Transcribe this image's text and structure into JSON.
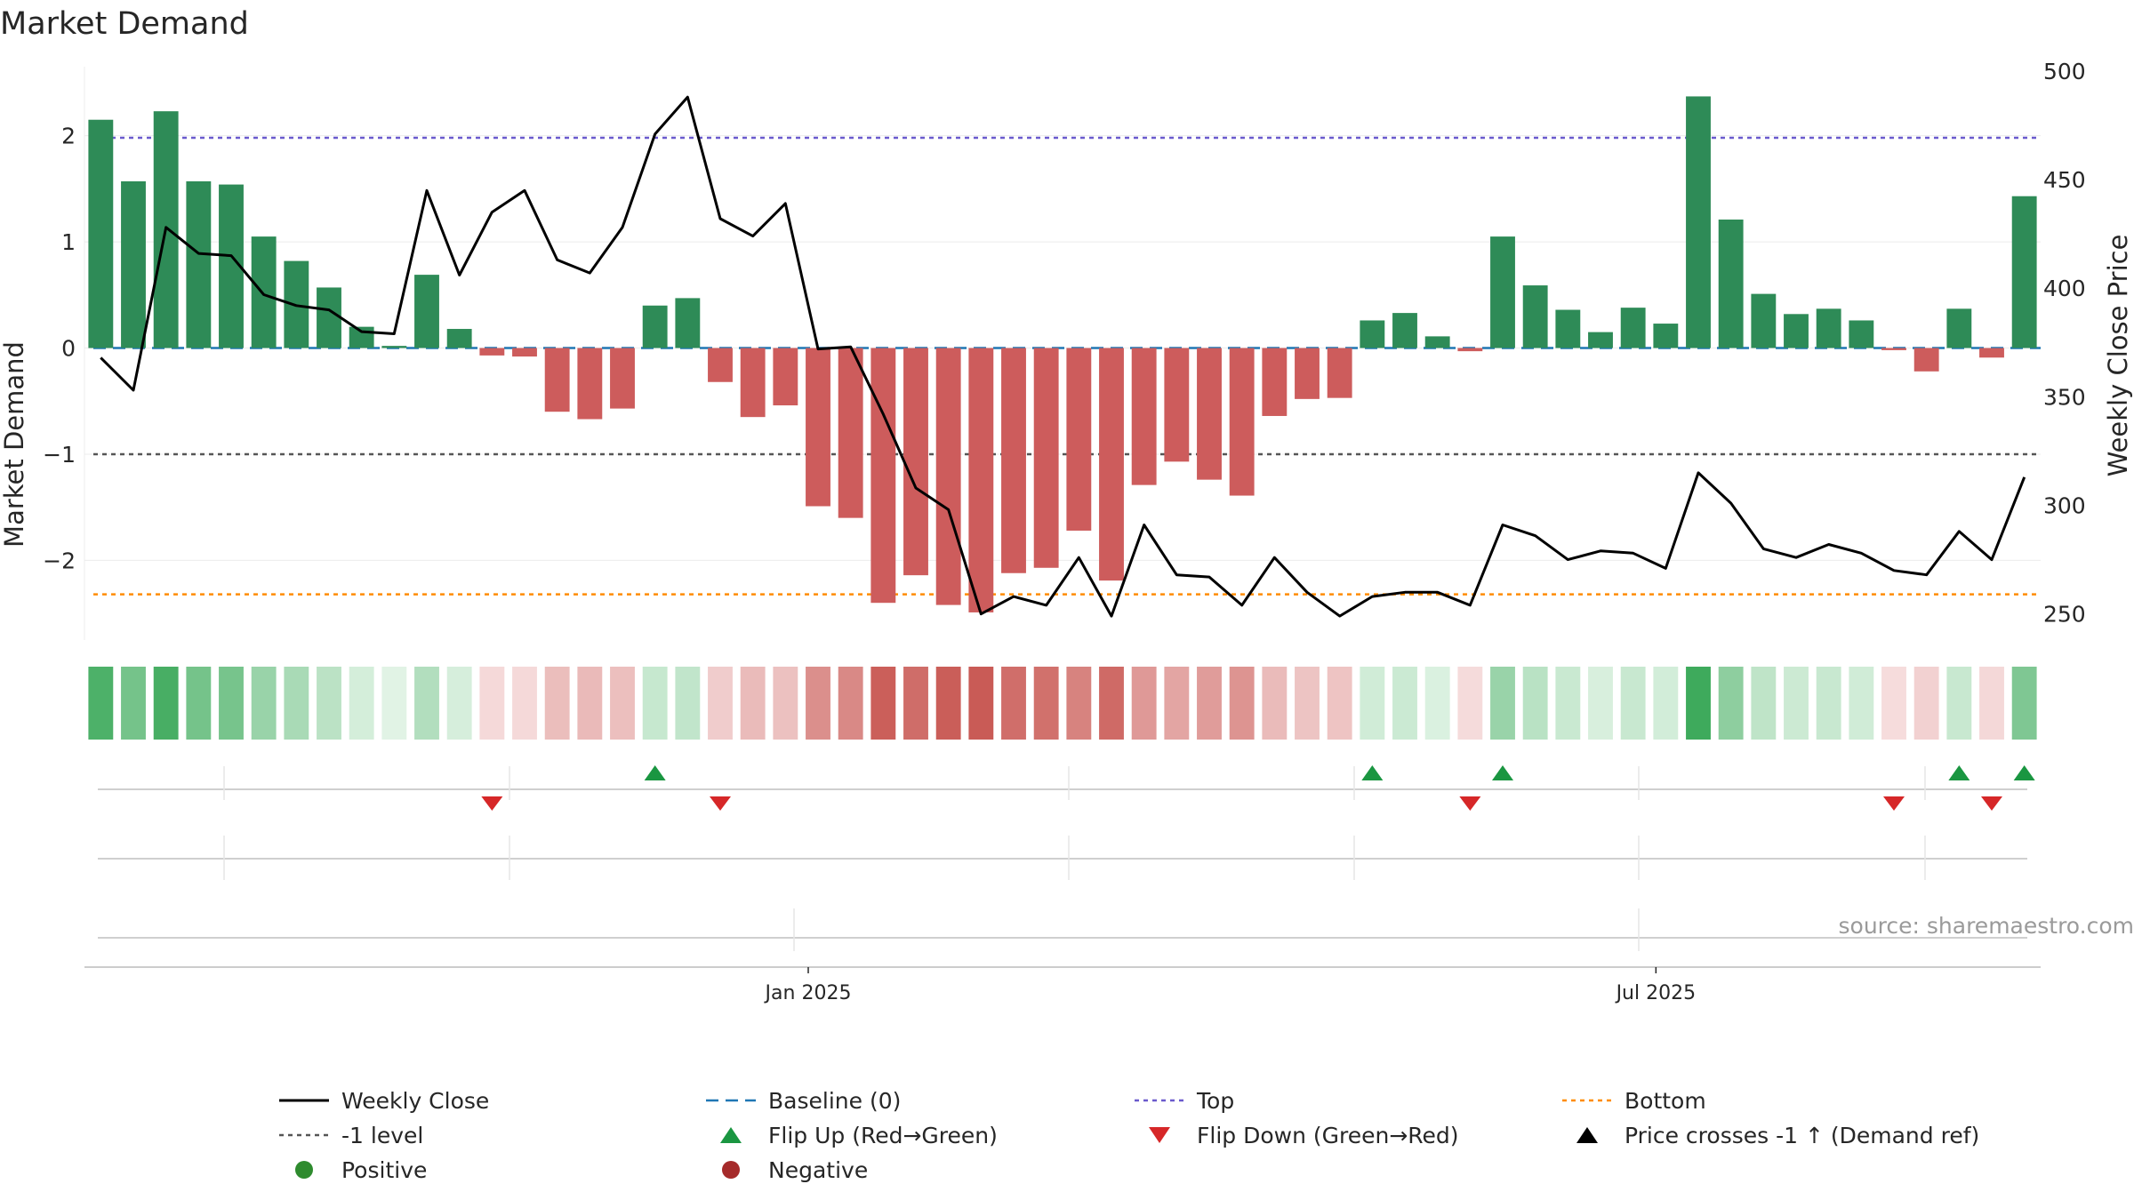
{
  "title": "Market Demand",
  "source": "source: sharemaestro.com",
  "colors": {
    "positive": "#2e8b57",
    "negative": "#cd5c5c",
    "price": "#000000",
    "baseline": "#1f77b4",
    "top": "#6a5acd",
    "bottom": "#ff8c00",
    "minus1": "#555555",
    "flip_up": "#1a9641",
    "flip_down": "#d62728"
  },
  "chart_data": {
    "type": "bar",
    "title": "Market Demand",
    "ylabel": "Market Demand",
    "y2label": "Weekly Close Price",
    "ylim": [
      -2.75,
      2.65
    ],
    "y2lim": [
      238,
      502
    ],
    "yticks": [
      -2,
      -1,
      0,
      1,
      2
    ],
    "yticklabels": [
      "−2",
      "−1",
      "0",
      "1",
      "2"
    ],
    "y2ticks": [
      250,
      300,
      350,
      400,
      450,
      500
    ],
    "xticks": [
      {
        "index": 21.7,
        "label": "Jan 2025"
      },
      {
        "index": 47.7,
        "label": "Jul 2025"
      }
    ],
    "weeks": 60,
    "demand": [
      2.15,
      1.57,
      2.23,
      1.57,
      1.54,
      1.05,
      0.82,
      0.57,
      0.2,
      0.02,
      0.69,
      0.18,
      -0.07,
      -0.08,
      -0.6,
      -0.67,
      -0.57,
      0.4,
      0.47,
      -0.32,
      -0.65,
      -0.54,
      -1.49,
      -1.6,
      -2.4,
      -2.14,
      -2.42,
      -2.49,
      -2.12,
      -2.07,
      -1.72,
      -2.19,
      -1.29,
      -1.07,
      -1.24,
      -1.39,
      -0.64,
      -0.48,
      -0.47,
      0.26,
      0.33,
      0.11,
      -0.03,
      1.05,
      0.59,
      0.36,
      0.15,
      0.38,
      0.23,
      2.37,
      1.21,
      0.51,
      0.32,
      0.37,
      0.26,
      -0.02,
      -0.22,
      0.37,
      -0.09,
      1.43
    ],
    "price": [
      368,
      353,
      428,
      416,
      415,
      397,
      392,
      390,
      380,
      379,
      445,
      406,
      435,
      445,
      413,
      407,
      428,
      471,
      488,
      432,
      424,
      439,
      372,
      373,
      342,
      308,
      298,
      250,
      258,
      254,
      276,
      249,
      291,
      268,
      267,
      254,
      276,
      260,
      249,
      258,
      260,
      260,
      254,
      291,
      286,
      275,
      279,
      278,
      271,
      315,
      301,
      280,
      276,
      282,
      278,
      270,
      268,
      288,
      275,
      313
    ],
    "top_level": 1.98,
    "bottom_level": -2.32,
    "minus1_level": -1,
    "flip_up_weeks": [
      17,
      39,
      43,
      57,
      59
    ],
    "flip_down_weeks": [
      12,
      19,
      42,
      55,
      58
    ],
    "legend": [
      {
        "label": "Weekly Close",
        "kind": "line"
      },
      {
        "label": "Baseline (0)",
        "kind": "dash"
      },
      {
        "label": "Top",
        "kind": "dot"
      },
      {
        "label": "Bottom",
        "kind": "dot-orange"
      },
      {
        "label": "-1 level",
        "kind": "dot-grey"
      },
      {
        "label": "Flip Up (Red→Green)",
        "kind": "tri-up-green"
      },
      {
        "label": "Flip Down (Green→Red)",
        "kind": "tri-down-red"
      },
      {
        "label": "Price crosses -1 ↑ (Demand ref)",
        "kind": "tri-up-black"
      },
      {
        "label": "Positive",
        "kind": "dot-green"
      },
      {
        "label": "Negative",
        "kind": "dot-red"
      }
    ]
  }
}
